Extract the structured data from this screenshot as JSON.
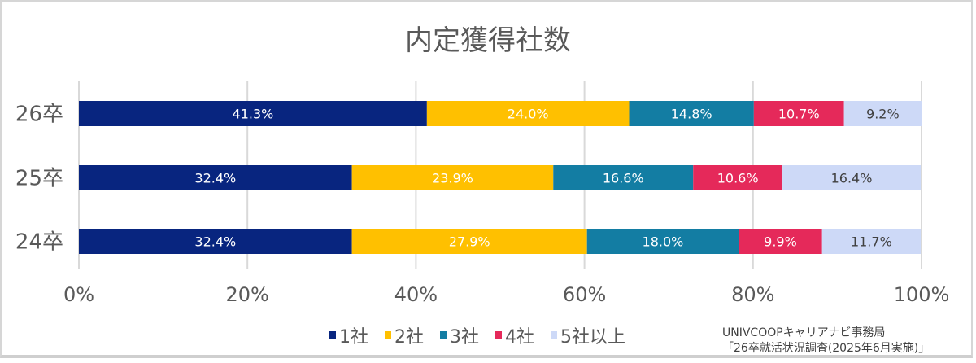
{
  "chart_data": {
    "type": "bar",
    "orientation": "horizontal-stacked-100",
    "title": "内定獲得社数",
    "categories": [
      "26卒",
      "25卒",
      "24卒"
    ],
    "series": [
      {
        "name": "1社",
        "color": "#08257f",
        "values": [
          41.3,
          32.4,
          32.4
        ]
      },
      {
        "name": "2社",
        "color": "#ffc000",
        "values": [
          24.0,
          23.9,
          27.9
        ]
      },
      {
        "name": "3社",
        "color": "#137da3",
        "values": [
          14.8,
          16.6,
          18.0
        ]
      },
      {
        "name": "4社",
        "color": "#e5295a",
        "values": [
          10.7,
          10.6,
          9.9
        ]
      },
      {
        "name": "5社以上",
        "color": "#cdd9f7",
        "values": [
          9.2,
          16.4,
          11.7
        ]
      }
    ],
    "xticks": [
      "0%",
      "20%",
      "40%",
      "60%",
      "80%",
      "100%"
    ],
    "xlim": [
      0,
      100
    ],
    "grid": true,
    "legend": "bottom"
  },
  "source": [
    "UNIVCOOPキャリアナビ事務局",
    "「26卒就活状況調査(2025年6月実施)」"
  ]
}
